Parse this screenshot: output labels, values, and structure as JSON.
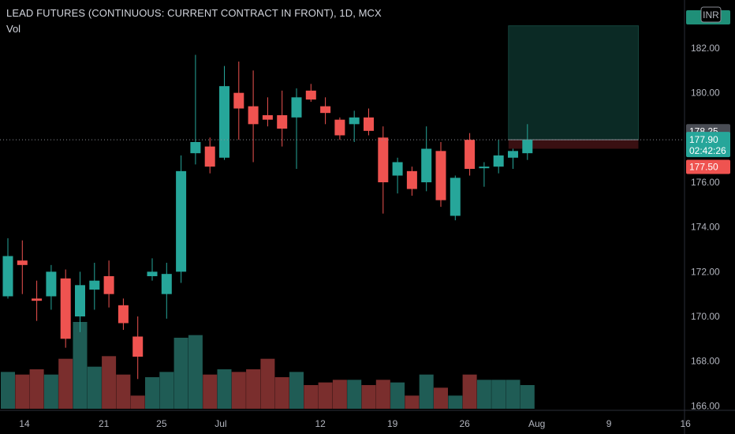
{
  "header": {
    "title": "LEAD FUTURES (CONTINUOUS: CURRENT CONTRACT IN FRONT), 1D, MCX",
    "volume_label": "Vol",
    "currency": "INR"
  },
  "colors": {
    "up": "#26a69a",
    "down": "#ef5350",
    "vol_up": "#1f5c55",
    "vol_down": "#7a2e2d",
    "zone_profit": "#0b2a25",
    "zone_loss": "#3a1012"
  },
  "price_badges": [
    {
      "label": "178.25",
      "price": 178.25,
      "bg": "#4a4d55"
    },
    {
      "label": "177.90",
      "sub": "02:42:26",
      "price": 177.9,
      "bg": "#26a69a"
    },
    {
      "label": "177.50",
      "price": 177.5,
      "bg": "#ef5350"
    }
  ],
  "chart_data": {
    "type": "candlestick",
    "x_ticks": [
      "14",
      "21",
      "25",
      "Jul",
      "12",
      "19",
      "26",
      "Aug",
      "9",
      "16"
    ],
    "y_ticks": [
      "166.00",
      "168.00",
      "170.00",
      "172.00",
      "174.00",
      "176.00",
      "178.00",
      "180.00",
      "182.00"
    ],
    "ylim": [
      165.8,
      183.8
    ],
    "last_price": 177.9,
    "candles": [
      {
        "o": 170.9,
        "h": 173.5,
        "l": 170.8,
        "c": 172.7,
        "v": 1.4
      },
      {
        "o": 172.5,
        "h": 173.4,
        "l": 171.0,
        "c": 172.3,
        "v": 1.3
      },
      {
        "o": 170.8,
        "h": 171.6,
        "l": 169.8,
        "c": 170.7,
        "v": 1.5
      },
      {
        "o": 170.9,
        "h": 172.3,
        "l": 170.3,
        "c": 172.0,
        "v": 1.3
      },
      {
        "o": 171.7,
        "h": 172.1,
        "l": 168.6,
        "c": 169.0,
        "v": 1.9
      },
      {
        "o": 170.0,
        "h": 172.0,
        "l": 169.3,
        "c": 171.4,
        "v": 3.3
      },
      {
        "o": 171.2,
        "h": 172.4,
        "l": 170.3,
        "c": 171.6,
        "v": 1.6
      },
      {
        "o": 171.8,
        "h": 172.5,
        "l": 170.4,
        "c": 171.0,
        "v": 2.0
      },
      {
        "o": 170.5,
        "h": 170.8,
        "l": 169.4,
        "c": 169.7,
        "v": 1.3
      },
      {
        "o": 169.1,
        "h": 170.0,
        "l": 167.2,
        "c": 168.2,
        "v": 0.5
      },
      {
        "o": 171.8,
        "h": 172.6,
        "l": 171.6,
        "c": 172.0,
        "v": 1.2
      },
      {
        "o": 171.0,
        "h": 172.4,
        "l": 169.9,
        "c": 171.9,
        "v": 1.4
      },
      {
        "o": 172.0,
        "h": 177.2,
        "l": 171.5,
        "c": 176.5,
        "v": 2.7
      },
      {
        "o": 177.3,
        "h": 181.7,
        "l": 176.8,
        "c": 177.8,
        "v": 2.8
      },
      {
        "o": 177.6,
        "h": 178.0,
        "l": 176.4,
        "c": 176.7,
        "v": 1.3
      },
      {
        "o": 177.1,
        "h": 181.2,
        "l": 177.0,
        "c": 180.3,
        "v": 1.5
      },
      {
        "o": 180.0,
        "h": 181.4,
        "l": 177.9,
        "c": 179.3,
        "v": 1.4
      },
      {
        "o": 179.4,
        "h": 181.0,
        "l": 176.9,
        "c": 178.6,
        "v": 1.5
      },
      {
        "o": 179.0,
        "h": 179.8,
        "l": 178.5,
        "c": 178.8,
        "v": 1.9
      },
      {
        "o": 179.0,
        "h": 180.1,
        "l": 177.6,
        "c": 178.4,
        "v": 1.2
      },
      {
        "o": 178.9,
        "h": 180.2,
        "l": 176.6,
        "c": 179.8,
        "v": 1.4
      },
      {
        "o": 180.1,
        "h": 180.4,
        "l": 179.6,
        "c": 179.7,
        "v": 0.9
      },
      {
        "o": 179.4,
        "h": 179.8,
        "l": 178.6,
        "c": 179.1,
        "v": 1.0
      },
      {
        "o": 178.8,
        "h": 178.9,
        "l": 177.9,
        "c": 178.1,
        "v": 1.1
      },
      {
        "o": 178.6,
        "h": 179.2,
        "l": 177.8,
        "c": 178.9,
        "v": 1.1
      },
      {
        "o": 178.9,
        "h": 179.3,
        "l": 178.1,
        "c": 178.3,
        "v": 0.9
      },
      {
        "o": 178.0,
        "h": 178.5,
        "l": 174.6,
        "c": 176.0,
        "v": 1.1
      },
      {
        "o": 176.3,
        "h": 177.1,
        "l": 175.5,
        "c": 176.9,
        "v": 1.0
      },
      {
        "o": 176.5,
        "h": 176.7,
        "l": 175.4,
        "c": 175.7,
        "v": 0.5
      },
      {
        "o": 176.0,
        "h": 178.5,
        "l": 175.6,
        "c": 177.5,
        "v": 1.3
      },
      {
        "o": 177.4,
        "h": 177.8,
        "l": 174.9,
        "c": 175.2,
        "v": 0.8
      },
      {
        "o": 174.5,
        "h": 176.3,
        "l": 174.3,
        "c": 176.2,
        "v": 0.5
      },
      {
        "o": 177.9,
        "h": 178.2,
        "l": 176.3,
        "c": 176.6,
        "v": 1.3
      },
      {
        "o": 176.7,
        "h": 176.9,
        "l": 175.8,
        "c": 176.7,
        "v": 1.1
      },
      {
        "o": 176.7,
        "h": 177.9,
        "l": 176.4,
        "c": 177.2,
        "v": 1.1
      },
      {
        "o": 177.1,
        "h": 177.5,
        "l": 176.6,
        "c": 177.4,
        "v": 1.1
      },
      {
        "o": 177.3,
        "h": 178.6,
        "l": 177.0,
        "c": 177.9,
        "v": 0.9
      }
    ],
    "position": {
      "entry": 177.9,
      "target": 183.0,
      "stop": 177.5,
      "start_index": 36,
      "bars_forward": 9
    }
  }
}
